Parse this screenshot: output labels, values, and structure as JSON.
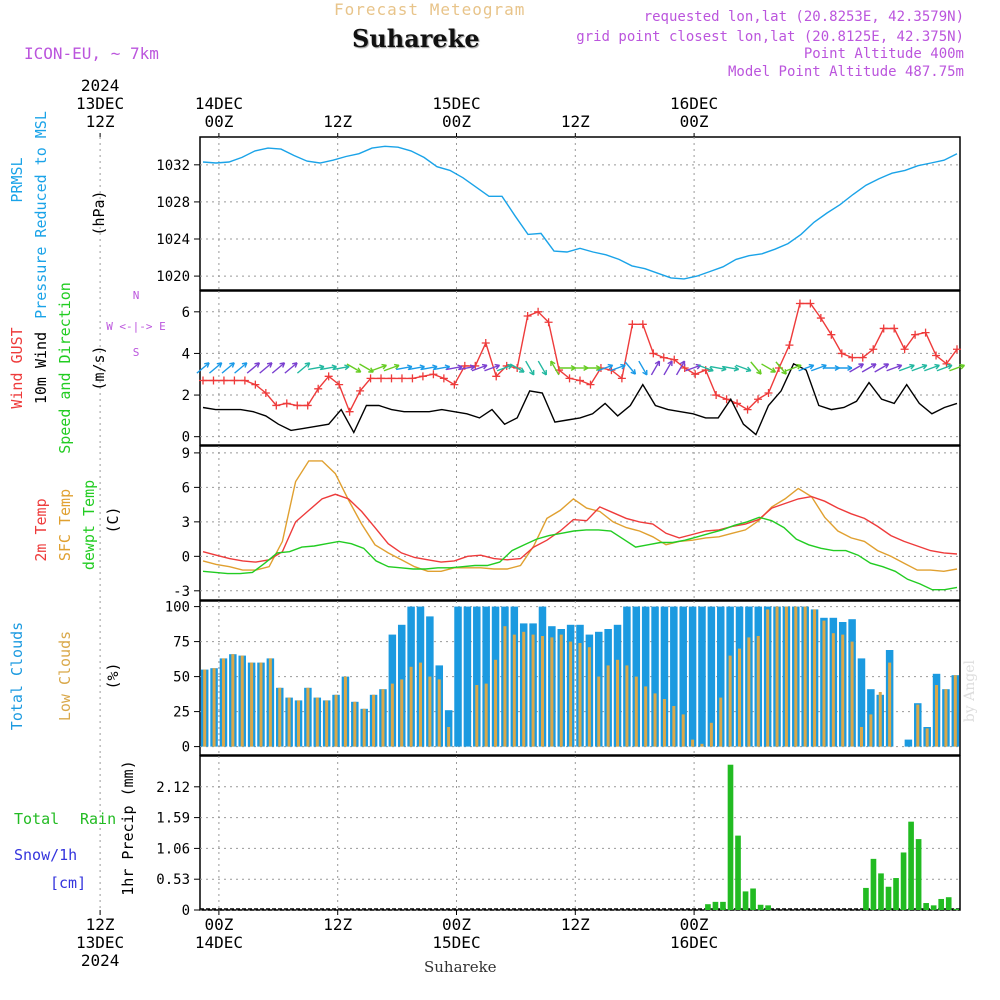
{
  "header": {
    "title": "Forecast Meteogram",
    "location": "Suhareke",
    "model": "ICON-EU, ~ 7km",
    "requested": "requested lon,lat (20.8253E, 42.3579N)",
    "grid": "grid point closest lon,lat (20.8125E, 42.375N)",
    "point_alt": "Point Altitude 400m",
    "model_alt": "Model Point Altitude 487.75m",
    "footer": "Suhareke",
    "watermark": "by Angel"
  },
  "colors": {
    "pressure": "#1aa3e8",
    "gust": "#ee3b3b",
    "wind": "#000000",
    "temp2m": "#ee3b3b",
    "sfc": "#e0a030",
    "dewpt": "#22cc22",
    "total_cloud": "#1b9ae0",
    "low_cloud": "#d9a84a",
    "precip": "#22bb22",
    "magenta": "#bb55dd"
  },
  "chart_data": {
    "type": "meteogram",
    "time": {
      "start": "2024-12-13T03Z",
      "end": "2024-12-16T05Z",
      "step_hours": 1
    },
    "top_axis": [
      {
        "time_h": 9,
        "lines": [
          "2024",
          "13DEC",
          "12Z"
        ]
      },
      {
        "time_h": 21,
        "lines": [
          "14DEC",
          "00Z"
        ]
      },
      {
        "time_h": 33,
        "lines": [
          "12Z"
        ]
      },
      {
        "time_h": 45,
        "lines": [
          "15DEC",
          "00Z"
        ]
      },
      {
        "time_h": 57,
        "lines": [
          "12Z"
        ]
      },
      {
        "time_h": 69,
        "lines": [
          "16DEC",
          "00Z"
        ]
      }
    ],
    "bottom_axis": [
      {
        "time_h": 9,
        "lines": [
          "12Z",
          "13DEC",
          "2024"
        ]
      },
      {
        "time_h": 21,
        "lines": [
          "00Z",
          "14DEC"
        ]
      },
      {
        "time_h": 33,
        "lines": [
          "12Z"
        ]
      },
      {
        "time_h": 45,
        "lines": [
          "00Z",
          "15DEC"
        ]
      },
      {
        "time_h": 57,
        "lines": [
          "12Z"
        ]
      },
      {
        "time_h": 69,
        "lines": [
          "00Z",
          "16DEC"
        ]
      }
    ],
    "panels": {
      "pressure": {
        "ylabels": [
          "PRMSL",
          "Pressure Reduced to MSL"
        ],
        "unit": "(hPa)",
        "yticks": [
          1020,
          1024,
          1028,
          1032
        ],
        "ylim": [
          1018.5,
          1035
        ],
        "values": [
          1032.3,
          1032.2,
          1032.3,
          1032.8,
          1033.5,
          1033.8,
          1033.7,
          1033.0,
          1032.4,
          1032.2,
          1032.5,
          1032.9,
          1033.2,
          1033.8,
          1034.0,
          1033.9,
          1033.5,
          1032.8,
          1031.8,
          1031.4,
          1030.6,
          1029.6,
          1028.6,
          1028.6,
          1026.5,
          1024.5,
          1024.6,
          1022.7,
          1022.6,
          1023.0,
          1022.6,
          1022.3,
          1021.8,
          1021.1,
          1020.8,
          1020.3,
          1019.8,
          1019.7,
          1020.0,
          1020.5,
          1021.0,
          1021.8,
          1022.2,
          1022.4,
          1022.9,
          1023.5,
          1024.5,
          1025.8,
          1026.8,
          1027.7,
          1028.8,
          1029.8,
          1030.5,
          1031.1,
          1031.4,
          1031.9,
          1032.2,
          1032.5,
          1033.2
        ]
      },
      "wind": {
        "ylabels": [
          "Wind GUST",
          "10m Wind",
          "Speed and Direction"
        ],
        "unit": "(m/s)",
        "yticks": [
          0,
          2,
          4,
          6
        ],
        "ylim": [
          -0.4,
          7
        ],
        "compass": [
          "N",
          "W <-|-> E",
          "S"
        ],
        "gust": [
          2.7,
          2.7,
          2.7,
          2.7,
          2.7,
          2.5,
          2.1,
          1.5,
          1.6,
          1.5,
          1.5,
          2.3,
          2.9,
          2.5,
          1.2,
          2.2,
          2.8,
          2.8,
          2.8,
          2.8,
          2.8,
          2.9,
          3.0,
          2.8,
          2.5,
          3.4,
          3.4,
          4.5,
          2.9,
          3.4,
          3.3,
          5.8,
          6.0,
          5.5,
          3.2,
          2.8,
          2.7,
          2.5,
          3.3,
          3.2,
          2.8,
          5.4,
          5.4,
          4.0,
          3.8,
          3.7,
          3.3,
          3.0,
          3.2,
          2.0,
          1.8,
          1.6,
          1.3,
          1.8,
          2.1,
          3.3,
          4.4,
          6.4,
          6.4,
          5.7,
          4.9,
          4.0,
          3.8,
          3.8,
          4.2,
          5.2,
          5.2,
          4.2,
          4.9,
          5.0,
          3.9,
          3.5,
          4.2
        ],
        "speed": [
          1.4,
          1.3,
          1.3,
          1.3,
          1.2,
          1.0,
          0.6,
          0.3,
          0.4,
          0.5,
          0.6,
          1.3,
          0.2,
          1.5,
          1.5,
          1.3,
          1.2,
          1.2,
          1.2,
          1.3,
          1.2,
          1.1,
          0.9,
          1.3,
          0.6,
          0.9,
          2.2,
          2.1,
          0.7,
          0.8,
          0.9,
          1.1,
          1.6,
          1.0,
          1.5,
          2.5,
          1.5,
          1.3,
          1.2,
          1.1,
          0.9,
          0.9,
          1.8,
          0.6,
          0.1,
          1.5,
          2.2,
          3.5,
          3.2,
          1.5,
          1.3,
          1.4,
          1.7,
          2.6,
          1.8,
          1.6,
          2.5,
          1.6,
          1.1,
          1.4,
          1.6
        ],
        "dir_deg": [
          230,
          230,
          230,
          230,
          230,
          230,
          230,
          230,
          230,
          260,
          260,
          260,
          300,
          300,
          250,
          250,
          260,
          260,
          260,
          260,
          260,
          260,
          250,
          250,
          250,
          300,
          330,
          330,
          150,
          270,
          270,
          270,
          250,
          250,
          320,
          330,
          210,
          210,
          210,
          250,
          290,
          280,
          280,
          290,
          320,
          300,
          320,
          250,
          250,
          250,
          270,
          270,
          240,
          240,
          240,
          250,
          250,
          250,
          250,
          250,
          250
        ]
      },
      "temperature": {
        "ylabels": [
          "2m Temp",
          "SFC Temp",
          "dewpt Temp"
        ],
        "unit": "(C)",
        "yticks": [
          -3,
          0,
          3,
          6,
          9
        ],
        "ylim": [
          -3.8,
          9.6
        ],
        "t2m": [
          0.4,
          0.1,
          -0.2,
          -0.4,
          -0.5,
          -0.3,
          0.4,
          3.0,
          4.0,
          5.0,
          5.4,
          5.0,
          3.9,
          2.5,
          1.1,
          0.3,
          -0.1,
          -0.3,
          -0.5,
          -0.4,
          0.0,
          0.1,
          -0.2,
          -0.3,
          -0.2,
          0.8,
          1.4,
          2.2,
          3.2,
          3.1,
          4.3,
          3.8,
          3.3,
          3.0,
          2.8,
          2.0,
          1.6,
          1.9,
          2.2,
          2.3,
          2.6,
          2.8,
          3.2,
          4.2,
          4.6,
          5.0,
          5.2,
          4.8,
          4.2,
          3.7,
          3.3,
          2.6,
          1.8,
          1.3,
          0.9,
          0.5,
          0.3,
          0.2
        ],
        "sfc": [
          -0.4,
          -0.7,
          -0.9,
          -1.2,
          -1.2,
          -0.9,
          1.3,
          6.5,
          8.3,
          8.3,
          7.2,
          4.9,
          2.8,
          1.0,
          0.3,
          -0.3,
          -0.9,
          -1.3,
          -1.3,
          -1.0,
          -1.0,
          -1.0,
          -1.1,
          -1.1,
          -0.8,
          0.9,
          3.3,
          4.0,
          5.0,
          4.2,
          3.9,
          3.0,
          2.5,
          2.2,
          1.7,
          1.0,
          1.3,
          1.4,
          1.6,
          1.7,
          2.0,
          2.3,
          3.1,
          4.3,
          5.0,
          5.9,
          5.2,
          3.4,
          2.2,
          1.6,
          1.3,
          0.5,
          0.0,
          -0.6,
          -1.2,
          -1.2,
          -1.3,
          -1.1
        ],
        "dewpt": [
          -1.3,
          -1.4,
          -1.5,
          -1.5,
          -1.4,
          -0.6,
          0.3,
          0.4,
          0.8,
          0.9,
          1.1,
          1.3,
          1.1,
          0.7,
          -0.4,
          -0.9,
          -1.0,
          -1.1,
          -1.1,
          -1.0,
          -1.0,
          -0.9,
          -0.8,
          -0.8,
          -0.5,
          0.5,
          1.0,
          1.5,
          1.8,
          2.0,
          2.2,
          2.3,
          2.3,
          2.2,
          1.5,
          0.8,
          1.0,
          1.2,
          1.2,
          1.4,
          1.7,
          2.0,
          2.3,
          2.7,
          3.0,
          3.4,
          3.1,
          2.5,
          1.5,
          1.0,
          0.7,
          0.5,
          0.5,
          0.1,
          -0.6,
          -0.9,
          -1.3,
          -2.0,
          -2.4,
          -2.9,
          -2.9,
          -2.7
        ]
      },
      "clouds": {
        "ylabels": [
          "Total Clouds",
          "Low Clouds"
        ],
        "unit": "(%)",
        "yticks": [
          0,
          25,
          50,
          75,
          100
        ],
        "ylim": [
          -6,
          104
        ],
        "total": [
          55,
          56,
          63,
          66,
          65,
          60,
          60,
          63,
          42,
          35,
          33,
          42,
          35,
          33,
          37,
          50,
          32,
          27,
          37,
          41,
          80,
          87,
          100,
          100,
          93,
          58,
          26,
          100,
          100,
          100,
          100,
          100,
          100,
          100,
          88,
          88,
          100,
          86,
          84,
          87,
          87,
          80,
          82,
          84,
          87,
          100,
          100,
          100,
          100,
          100,
          100,
          100,
          100,
          100,
          100,
          100,
          100,
          100,
          100,
          100,
          100,
          100,
          100,
          100,
          100,
          98,
          92,
          92,
          89,
          91,
          63,
          41,
          37,
          69,
          0,
          5,
          31,
          14,
          52,
          41,
          51
        ],
        "low": [
          55,
          56,
          63,
          66,
          65,
          60,
          60,
          63,
          42,
          35,
          33,
          42,
          35,
          33,
          37,
          50,
          32,
          27,
          37,
          41,
          45,
          48,
          57,
          60,
          50,
          48,
          14,
          0,
          0,
          44,
          45,
          62,
          86,
          80,
          82,
          80,
          79,
          78,
          80,
          75,
          74,
          71,
          50,
          58,
          62,
          58,
          50,
          43,
          38,
          34,
          29,
          23,
          5,
          2,
          17,
          35,
          65,
          70,
          78,
          79,
          98,
          100,
          100,
          100,
          100,
          98,
          90,
          81,
          80,
          75,
          14,
          23,
          39,
          60,
          0,
          0,
          30,
          13,
          44,
          41,
          51
        ]
      },
      "precip": {
        "ylabels": [
          "1hr Precip (mm)"
        ],
        "legend": [
          "Total",
          "Rain",
          "Snow/1h",
          "[cm]"
        ],
        "yticks": [
          "0",
          "0.53",
          "1.06",
          "1.59",
          "2.12"
        ],
        "ylim": [
          0,
          2.65
        ],
        "values": [
          0,
          0,
          0,
          0,
          0,
          0,
          0,
          0,
          0,
          0,
          0,
          0,
          0,
          0,
          0,
          0,
          0,
          0,
          0,
          0,
          0,
          0,
          0,
          0,
          0,
          0,
          0,
          0,
          0,
          0,
          0,
          0,
          0,
          0,
          0,
          0,
          0,
          0,
          0,
          0,
          0,
          0,
          0,
          0,
          0,
          0,
          0,
          0,
          0,
          0,
          0,
          0,
          0,
          0,
          0,
          0,
          0,
          0,
          0,
          0,
          0,
          0,
          0,
          0,
          0,
          0,
          0,
          0.1,
          0.14,
          0.14,
          2.5,
          1.28,
          0.32,
          0.37,
          0.09,
          0.08,
          0,
          0,
          0,
          0,
          0,
          0,
          0,
          0,
          0,
          0,
          0,
          0,
          0.38,
          0.88,
          0.63,
          0.4,
          0.55,
          0.99,
          1.52,
          1.22,
          0.12,
          0.08,
          0.19,
          0.22,
          0.02
        ]
      }
    }
  }
}
